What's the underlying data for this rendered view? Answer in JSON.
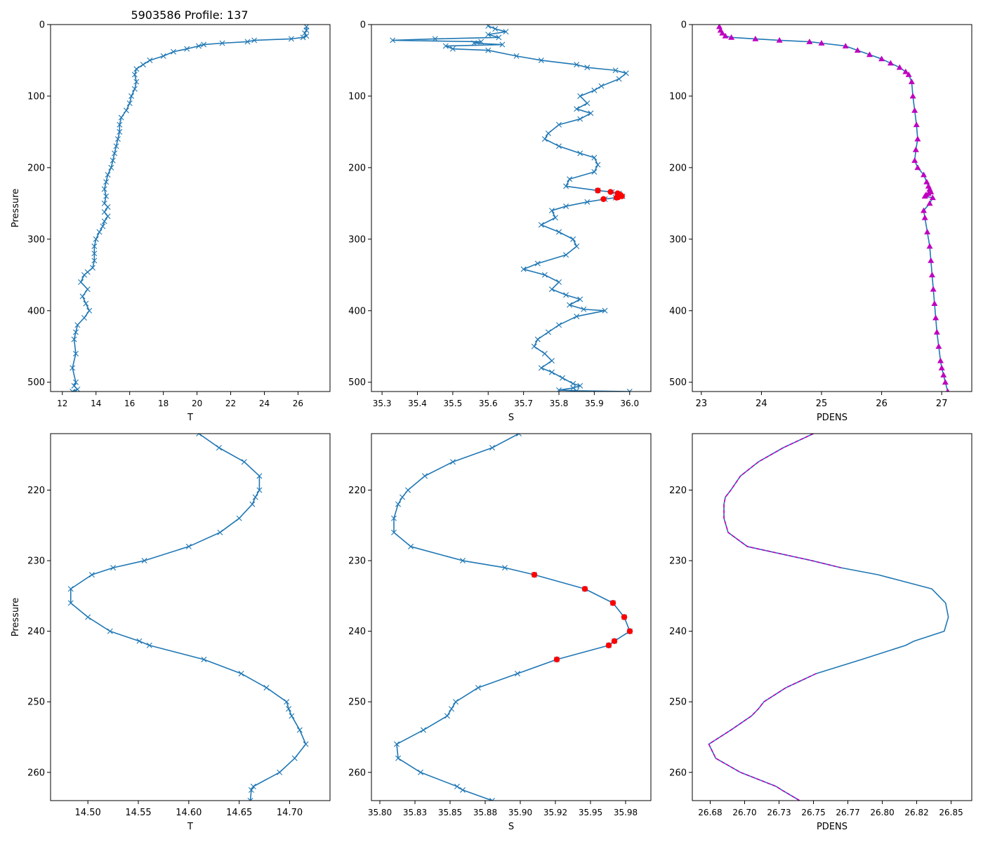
{
  "figure_title": "5903586 Profile: 137",
  "colors": {
    "series": "#1f77b4",
    "density_marker": "#bf00bf",
    "highlight": "#ff0000",
    "axis": "#000000"
  },
  "chart_data": [
    {
      "id": "top-temperature",
      "type": "line",
      "marker": "x",
      "title": "",
      "xlabel": "T",
      "ylabel": "Pressure",
      "xlim": [
        11.3,
        27.9
      ],
      "ylim": [
        513,
        0
      ],
      "y_inverted": true,
      "xticks": [
        12,
        14,
        16,
        18,
        20,
        22,
        24,
        26
      ],
      "yticks": [
        0,
        100,
        200,
        300,
        400,
        500
      ],
      "x": [
        26.5,
        26.5,
        26.4,
        26.5,
        26.3,
        25.6,
        23.4,
        23.0,
        21.5,
        20.4,
        20.1,
        19.4,
        18.6,
        18.0,
        17.2,
        16.8,
        16.4,
        16.3,
        16.4,
        16.3,
        16.1,
        16.0,
        15.8,
        15.5,
        15.4,
        15.4,
        15.3,
        15.2,
        15.1,
        15.0,
        14.9,
        14.7,
        14.6,
        14.5,
        14.6,
        14.5,
        14.7,
        14.5,
        14.7,
        14.5,
        14.4,
        14.2,
        14.0,
        13.9,
        13.9,
        13.9,
        13.8,
        13.5,
        13.3,
        13.1,
        13.5,
        13.2,
        13.4,
        13.6,
        13.3,
        12.9,
        12.8,
        12.7,
        12.8,
        12.6,
        12.8,
        12.7,
        12.9,
        12.6
      ],
      "y": [
        3,
        8,
        12,
        16,
        18,
        20,
        22,
        24,
        26,
        28,
        30,
        34,
        38,
        44,
        50,
        56,
        62,
        70,
        80,
        90,
        100,
        110,
        120,
        130,
        140,
        150,
        160,
        170,
        180,
        190,
        200,
        210,
        220,
        230,
        240,
        250,
        255,
        262,
        268,
        275,
        282,
        290,
        300,
        310,
        320,
        330,
        340,
        346,
        350,
        360,
        370,
        380,
        390,
        400,
        410,
        420,
        430,
        440,
        460,
        480,
        500,
        505,
        510,
        513
      ]
    },
    {
      "id": "top-salinity",
      "type": "line",
      "marker": "x",
      "title": "",
      "xlabel": "S",
      "ylabel": "",
      "xlim": [
        35.27,
        36.06
      ],
      "ylim": [
        513,
        0
      ],
      "y_inverted": true,
      "xticks": [
        35.3,
        35.4,
        35.5,
        35.6,
        35.7,
        35.8,
        35.9,
        36.0
      ],
      "yticks": [
        0,
        100,
        200,
        300,
        400,
        500
      ],
      "x": [
        35.6,
        35.62,
        35.65,
        35.6,
        35.63,
        35.45,
        35.33,
        35.58,
        35.56,
        35.64,
        35.48,
        35.5,
        35.6,
        35.68,
        35.75,
        35.85,
        35.88,
        35.96,
        35.99,
        35.97,
        35.92,
        35.9,
        35.86,
        35.88,
        35.85,
        35.89,
        35.86,
        35.8,
        35.77,
        35.76,
        35.8,
        35.86,
        35.9,
        35.91,
        35.9,
        35.83,
        35.82,
        35.91,
        35.95,
        35.97,
        35.98,
        35.96,
        35.93,
        35.88,
        35.82,
        35.78,
        35.79,
        35.75,
        35.8,
        35.84,
        35.85,
        35.82,
        35.74,
        35.7,
        35.76,
        35.8,
        35.78,
        35.82,
        35.86,
        35.83,
        35.87,
        35.93,
        35.85,
        35.8,
        35.77,
        35.74,
        35.73,
        35.76,
        35.78,
        35.75,
        35.78,
        35.81,
        35.84,
        35.86,
        35.84,
        35.8,
        35.85,
        36.0
      ],
      "y": [
        2,
        6,
        10,
        14,
        18,
        20,
        22,
        24,
        26,
        28,
        30,
        34,
        36,
        44,
        50,
        56,
        60,
        64,
        68,
        76,
        86,
        92,
        100,
        110,
        118,
        124,
        132,
        140,
        152,
        160,
        170,
        180,
        186,
        196,
        206,
        216,
        226,
        232,
        234,
        236,
        240,
        242,
        244,
        248,
        254,
        260,
        270,
        280,
        290,
        300,
        310,
        322,
        334,
        342,
        350,
        360,
        370,
        378,
        384,
        392,
        398,
        400,
        408,
        420,
        430,
        440,
        450,
        460,
        470,
        480,
        486,
        494,
        502,
        505,
        508,
        511,
        512,
        513
      ],
      "highlight_points": {
        "x": [
          35.91,
          35.946,
          35.966,
          35.974,
          35.978,
          35.967,
          35.963,
          35.926
        ],
        "y": [
          232,
          234,
          236,
          238,
          240,
          241.4,
          242,
          244
        ]
      }
    },
    {
      "id": "top-density",
      "type": "line",
      "marker": "triangle",
      "title": "",
      "xlabel": "PDENS",
      "ylabel": "",
      "xlim": [
        22.85,
        27.5
      ],
      "ylim": [
        513,
        0
      ],
      "y_inverted": true,
      "xticks": [
        23,
        24,
        25,
        26,
        27
      ],
      "yticks": [
        0,
        100,
        200,
        300,
        400,
        500
      ],
      "x": [
        23.3,
        23.32,
        23.35,
        23.4,
        23.5,
        23.9,
        24.3,
        24.8,
        25.0,
        25.4,
        25.6,
        25.8,
        26.0,
        26.15,
        26.3,
        26.4,
        26.45,
        26.5,
        26.52,
        26.55,
        26.58,
        26.6,
        26.57,
        26.55,
        26.6,
        26.7,
        26.75,
        26.78,
        26.8,
        26.82,
        26.78,
        26.74,
        26.72,
        26.85,
        26.8,
        26.7,
        26.72,
        26.76,
        26.8,
        26.82,
        26.84,
        26.86,
        26.88,
        26.9,
        26.92,
        26.95,
        26.98,
        27.0,
        27.03,
        27.06,
        27.1
      ],
      "y": [
        3,
        8,
        12,
        16,
        18,
        20,
        22,
        24,
        26,
        30,
        36,
        42,
        48,
        54,
        60,
        66,
        70,
        80,
        100,
        120,
        140,
        160,
        175,
        190,
        200,
        210,
        220,
        226,
        230,
        234,
        236,
        238,
        240,
        242,
        250,
        260,
        270,
        290,
        310,
        330,
        350,
        370,
        390,
        410,
        430,
        450,
        470,
        480,
        490,
        500,
        513
      ]
    },
    {
      "id": "bottom-temperature",
      "type": "line",
      "marker": "x",
      "title": "",
      "xlabel": "T",
      "ylabel": "Pressure",
      "xlim": [
        14.463,
        14.74
      ],
      "ylim": [
        264,
        212
      ],
      "y_inverted": true,
      "xticks": [
        14.5,
        14.55,
        14.6,
        14.65,
        14.7
      ],
      "yticks": [
        220,
        230,
        240,
        250,
        260
      ],
      "x": [
        14.61,
        14.63,
        14.655,
        14.67,
        14.67,
        14.666,
        14.663,
        14.65,
        14.631,
        14.6,
        14.556,
        14.525,
        14.504,
        14.483,
        14.483,
        14.5,
        14.522,
        14.551,
        14.561,
        14.615,
        14.652,
        14.677,
        14.697,
        14.699,
        14.702,
        14.71,
        14.716,
        14.705,
        14.69,
        14.664,
        14.662,
        14.661
      ],
      "y": [
        212,
        214,
        216,
        218,
        220,
        221,
        222,
        224,
        226,
        228,
        230,
        231,
        232,
        234,
        236,
        238,
        240,
        241.4,
        242,
        244,
        246,
        248,
        250,
        251,
        252,
        254,
        256,
        258,
        260,
        262,
        262.5,
        264
      ]
    },
    {
      "id": "bottom-salinity",
      "type": "line",
      "marker": "x",
      "title": "",
      "xlabel": "S",
      "ylabel": "",
      "xlim": [
        35.794,
        35.993
      ],
      "ylim": [
        264,
        212
      ],
      "y_inverted": true,
      "xticks": [
        35.8,
        35.825,
        35.85,
        35.875,
        35.9,
        35.925,
        35.95,
        35.975
      ],
      "yticks": [
        220,
        230,
        240,
        250,
        260
      ],
      "x": [
        35.899,
        35.88,
        35.852,
        35.832,
        35.82,
        35.816,
        35.813,
        35.81,
        35.81,
        35.822,
        35.859,
        35.889,
        35.91,
        35.946,
        35.966,
        35.974,
        35.978,
        35.967,
        35.963,
        35.926,
        35.898,
        35.87,
        35.854,
        35.851,
        35.848,
        35.831,
        35.812,
        35.813,
        35.829,
        35.855,
        35.859,
        35.88
      ],
      "y": [
        212,
        214,
        216,
        218,
        220,
        221,
        222,
        224,
        226,
        228,
        230,
        231,
        232,
        234,
        236,
        238,
        240,
        241.4,
        242,
        244,
        246,
        248,
        250,
        251,
        252,
        254,
        256,
        258,
        260,
        262,
        262.5,
        264
      ],
      "highlight_points": {
        "x": [
          35.91,
          35.946,
          35.966,
          35.974,
          35.978,
          35.967,
          35.963,
          35.926
        ],
        "y": [
          232,
          234,
          236,
          238,
          240,
          241.4,
          242,
          244
        ]
      }
    },
    {
      "id": "bottom-density",
      "type": "line",
      "marker": "none",
      "title": "",
      "xlabel": "PDENS",
      "ylabel": "",
      "xlim": [
        26.662,
        26.865
      ],
      "ylim": [
        264,
        212
      ],
      "y_inverted": true,
      "xticks": [
        26.675,
        26.7,
        26.725,
        26.75,
        26.775,
        26.8,
        26.825,
        26.85
      ],
      "yticks": [
        220,
        230,
        240,
        250,
        260
      ],
      "x": [
        26.75,
        26.728,
        26.71,
        26.697,
        26.69,
        26.686,
        26.685,
        26.685,
        26.688,
        26.702,
        26.749,
        26.77,
        26.797,
        26.836,
        26.846,
        26.848,
        26.845,
        26.823,
        26.817,
        26.785,
        26.752,
        26.73,
        26.714,
        26.71,
        26.705,
        26.69,
        26.674,
        26.679,
        26.697,
        26.723,
        26.727,
        26.74
      ],
      "y": [
        212,
        214,
        216,
        218,
        220,
        221,
        222,
        224,
        226,
        228,
        230,
        231,
        232,
        234,
        236,
        238,
        240,
        241.4,
        242,
        244,
        246,
        248,
        250,
        251,
        252,
        254,
        256,
        258,
        260,
        262,
        262.5,
        264
      ],
      "overlay_exclude_y": [
        231.5,
        245.5
      ]
    }
  ]
}
